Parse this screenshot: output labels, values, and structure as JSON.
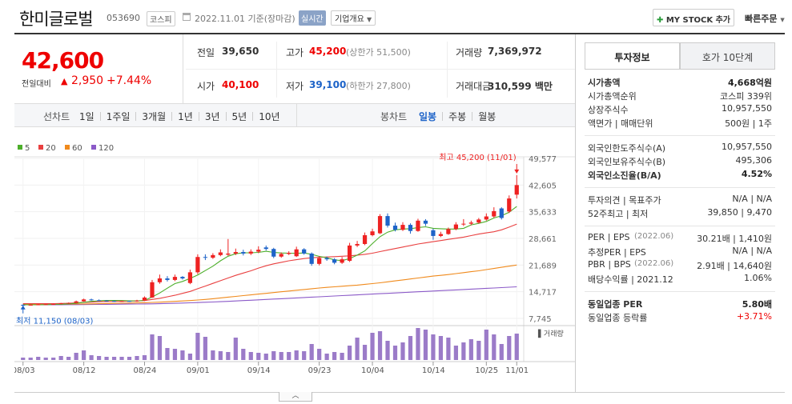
{
  "header": {
    "name": "한미글로벌",
    "code": "053690",
    "market_badge": "코스피",
    "date_text": "2022.11.01 기준(장마감)",
    "realtime_badge": "실시간",
    "company_info_label": "기업개요",
    "mystock_label": "MY STOCK 추가",
    "quick_order_label": "빠른주문"
  },
  "price": {
    "current": "42,600",
    "change_label": "전일대비",
    "change": "2,950",
    "change_pct": "+7.44%"
  },
  "summary": {
    "prev_label": "전일",
    "prev": "39,650",
    "high_label": "고가",
    "high": "45,200",
    "upper_label": "(상한가 51,500)",
    "volume_label": "거래량",
    "volume": "7,369,972",
    "open_label": "시가",
    "open": "40,100",
    "low_label": "저가",
    "low": "39,100",
    "lower_label": "(하한가 27,800)",
    "amount_label": "거래대금",
    "amount": "310,599 백만"
  },
  "period_tabs": {
    "line_label": "선차트",
    "items": [
      "1일",
      "1주일",
      "3개월",
      "1년",
      "3년",
      "5년",
      "10년"
    ],
    "candle_label": "봉차트",
    "candle_items": [
      "일봉",
      "주봉",
      "월봉"
    ]
  },
  "chart_data": {
    "type": "candlestick",
    "legend": [
      {
        "label": "5",
        "color": "#4caf2a"
      },
      {
        "label": "20",
        "color": "#e94040"
      },
      {
        "label": "60",
        "color": "#f08a1c"
      },
      {
        "label": "120",
        "color": "#8b5ac8"
      }
    ],
    "y_ticks": [
      "49,577",
      "42,605",
      "35,633",
      "28,661",
      "21,689",
      "14,717",
      "7,745"
    ],
    "x_ticks": [
      "08/03",
      "08/12",
      "08/24",
      "09/01",
      "09/14",
      "09/23",
      "10/04",
      "10/14",
      "10/25",
      "11/01"
    ],
    "max_annotation": "최고 45,200 (11/01)",
    "min_annotation": "최저 11,150 (08/03)",
    "volume_label": "거래량",
    "ylim": [
      7745,
      49577
    ],
    "candles": [
      {
        "o": 11300,
        "c": 11200,
        "h": 11400,
        "l": 11150
      },
      {
        "o": 11200,
        "c": 11300,
        "h": 11400,
        "l": 11150
      },
      {
        "o": 11300,
        "c": 11400,
        "h": 11500,
        "l": 11250
      },
      {
        "o": 11400,
        "c": 11450,
        "h": 11550,
        "l": 11350
      },
      {
        "o": 11450,
        "c": 11500,
        "h": 11600,
        "l": 11400
      },
      {
        "o": 11500,
        "c": 11700,
        "h": 11800,
        "l": 11450
      },
      {
        "o": 11700,
        "c": 11800,
        "h": 11900,
        "l": 11650
      },
      {
        "o": 11800,
        "c": 12200,
        "h": 12400,
        "l": 11700
      },
      {
        "o": 12200,
        "c": 12700,
        "h": 12900,
        "l": 12100
      },
      {
        "o": 12700,
        "c": 12500,
        "h": 12900,
        "l": 12400
      },
      {
        "o": 12500,
        "c": 12400,
        "h": 12700,
        "l": 12300
      },
      {
        "o": 12400,
        "c": 12300,
        "h": 12500,
        "l": 12200
      },
      {
        "o": 12300,
        "c": 12200,
        "h": 12400,
        "l": 12100
      },
      {
        "o": 12200,
        "c": 12300,
        "h": 12400,
        "l": 12100
      },
      {
        "o": 12300,
        "c": 12200,
        "h": 12400,
        "l": 12100
      },
      {
        "o": 12200,
        "c": 12400,
        "h": 12600,
        "l": 12100
      },
      {
        "o": 12400,
        "c": 13200,
        "h": 13500,
        "l": 12300
      },
      {
        "o": 13200,
        "c": 17200,
        "h": 17800,
        "l": 13100
      },
      {
        "o": 17200,
        "c": 18200,
        "h": 19200,
        "l": 16800
      },
      {
        "o": 18200,
        "c": 17800,
        "h": 18800,
        "l": 17400
      },
      {
        "o": 17800,
        "c": 18600,
        "h": 19200,
        "l": 17500
      },
      {
        "o": 18600,
        "c": 18200,
        "h": 18800,
        "l": 17900
      },
      {
        "o": 17000,
        "c": 19800,
        "h": 20500,
        "l": 16700
      },
      {
        "o": 19800,
        "c": 23800,
        "h": 24500,
        "l": 19300
      },
      {
        "o": 23800,
        "c": 23600,
        "h": 24500,
        "l": 23000
      },
      {
        "o": 23600,
        "c": 24300,
        "h": 24800,
        "l": 23300
      },
      {
        "o": 24300,
        "c": 25000,
        "h": 25800,
        "l": 24000
      },
      {
        "o": 24400,
        "c": 24700,
        "h": 28500,
        "l": 24100
      },
      {
        "o": 24700,
        "c": 25100,
        "h": 26000,
        "l": 24300
      },
      {
        "o": 25100,
        "c": 24700,
        "h": 25700,
        "l": 24200
      },
      {
        "o": 24700,
        "c": 25200,
        "h": 25800,
        "l": 24300
      },
      {
        "o": 25200,
        "c": 25700,
        "h": 26600,
        "l": 24800
      },
      {
        "o": 26300,
        "c": 25900,
        "h": 26800,
        "l": 25500
      },
      {
        "o": 25900,
        "c": 23900,
        "h": 26200,
        "l": 23500
      },
      {
        "o": 23900,
        "c": 24600,
        "h": 25000,
        "l": 23600
      },
      {
        "o": 24600,
        "c": 24900,
        "h": 25300,
        "l": 24300
      },
      {
        "o": 24000,
        "c": 25800,
        "h": 26500,
        "l": 23800
      },
      {
        "o": 25800,
        "c": 24700,
        "h": 26100,
        "l": 24400
      },
      {
        "o": 24700,
        "c": 22000,
        "h": 25000,
        "l": 21500
      },
      {
        "o": 22000,
        "c": 23500,
        "h": 24000,
        "l": 21600
      },
      {
        "o": 23500,
        "c": 23200,
        "h": 23900,
        "l": 22800
      },
      {
        "o": 23200,
        "c": 22300,
        "h": 23500,
        "l": 21900
      },
      {
        "o": 22300,
        "c": 23200,
        "h": 23800,
        "l": 22000
      },
      {
        "o": 22800,
        "c": 26800,
        "h": 27500,
        "l": 22500
      },
      {
        "o": 26800,
        "c": 27200,
        "h": 28000,
        "l": 26400
      },
      {
        "o": 27200,
        "c": 29500,
        "h": 30200,
        "l": 26900
      },
      {
        "o": 29500,
        "c": 30500,
        "h": 31200,
        "l": 29200
      },
      {
        "o": 30000,
        "c": 34500,
        "h": 35000,
        "l": 29800
      },
      {
        "o": 34500,
        "c": 32000,
        "h": 35200,
        "l": 31500
      },
      {
        "o": 32000,
        "c": 30900,
        "h": 32800,
        "l": 30500
      },
      {
        "o": 30900,
        "c": 32200,
        "h": 32900,
        "l": 30600
      },
      {
        "o": 32200,
        "c": 30600,
        "h": 32600,
        "l": 29900
      },
      {
        "o": 30600,
        "c": 33300,
        "h": 33800,
        "l": 30400
      },
      {
        "o": 33300,
        "c": 32500,
        "h": 33700,
        "l": 31900
      },
      {
        "o": 30800,
        "c": 29300,
        "h": 31200,
        "l": 28300
      },
      {
        "o": 29300,
        "c": 29800,
        "h": 30400,
        "l": 29000
      },
      {
        "o": 29800,
        "c": 31100,
        "h": 31500,
        "l": 29600
      },
      {
        "o": 31100,
        "c": 32300,
        "h": 32900,
        "l": 30800
      },
      {
        "o": 32300,
        "c": 32500,
        "h": 33700,
        "l": 31900
      },
      {
        "o": 32500,
        "c": 32800,
        "h": 33300,
        "l": 32100
      },
      {
        "o": 32800,
        "c": 33600,
        "h": 34000,
        "l": 32500
      },
      {
        "o": 33600,
        "c": 34400,
        "h": 35200,
        "l": 33300
      },
      {
        "o": 34400,
        "c": 35800,
        "h": 36800,
        "l": 34100
      },
      {
        "o": 36500,
        "c": 34000,
        "h": 36800,
        "l": 33600
      },
      {
        "o": 35700,
        "c": 39100,
        "h": 39900,
        "l": 35300
      },
      {
        "o": 40100,
        "c": 42600,
        "h": 45200,
        "l": 39100
      }
    ],
    "ma": {
      "ma5": {
        "color": "#4caf2a",
        "values": [
          11300,
          11300,
          11300,
          11350,
          11400,
          11450,
          11550,
          11700,
          11950,
          12200,
          12350,
          12450,
          12450,
          12400,
          12350,
          12300,
          12450,
          13350,
          14400,
          15650,
          16850,
          17400,
          18200,
          19100,
          20250,
          21400,
          22800,
          24000,
          24650,
          24900,
          24900,
          25000,
          25300,
          25000,
          24850,
          24800,
          24750,
          24850,
          24500,
          23950,
          23600,
          23050,
          22850,
          23400,
          24300,
          25400,
          27300,
          29100,
          30300,
          30900,
          31100,
          31200,
          31500,
          31700,
          31300,
          31200,
          31100,
          31100,
          31300,
          32200,
          32600,
          33100,
          34000,
          34600,
          35500,
          37000
        ]
      },
      "ma20": {
        "color": "#e94040",
        "values": [
          11600,
          11600,
          11600,
          11600,
          11620,
          11650,
          11700,
          11800,
          11900,
          12000,
          12100,
          12150,
          12200,
          12200,
          12250,
          12300,
          12400,
          12700,
          13000,
          13400,
          13800,
          14300,
          14800,
          15500,
          16200,
          16900,
          17600,
          18300,
          19000,
          19600,
          20200,
          20900,
          21500,
          22000,
          22400,
          22800,
          23100,
          23400,
          23600,
          23700,
          23800,
          23900,
          24000,
          24100,
          24300,
          24500,
          24800,
          25200,
          25600,
          26000,
          26400,
          26800,
          27200,
          27500,
          27800,
          28100,
          28400,
          28700,
          29000,
          29400,
          29800,
          30100,
          30400,
          30900,
          31600,
          32400
        ]
      },
      "ma60": {
        "color": "#f08a1c",
        "values": [
          11400,
          11400,
          11400,
          11420,
          11440,
          11460,
          11480,
          11500,
          11530,
          11560,
          11600,
          11640,
          11680,
          11720,
          11760,
          11800,
          11850,
          11920,
          12000,
          12100,
          12200,
          12300,
          12400,
          12550,
          12700,
          12900,
          13100,
          13300,
          13500,
          13700,
          13900,
          14100,
          14300,
          14500,
          14700,
          14900,
          15100,
          15300,
          15500,
          15700,
          15850,
          16000,
          16150,
          16300,
          16450,
          16650,
          16850,
          17050,
          17300,
          17550,
          17800,
          18050,
          18300,
          18550,
          18800,
          19000,
          19200,
          19450,
          19700,
          19950,
          20200,
          20500,
          20800,
          21100,
          21400,
          21700
        ]
      },
      "ma120": {
        "color": "#8b5ac8",
        "values": [
          11300,
          11300,
          11300,
          11310,
          11320,
          11330,
          11340,
          11350,
          11360,
          11380,
          11400,
          11420,
          11440,
          11460,
          11480,
          11500,
          11530,
          11560,
          11600,
          11650,
          11700,
          11760,
          11820,
          11890,
          11960,
          12040,
          12120,
          12210,
          12300,
          12400,
          12500,
          12600,
          12700,
          12800,
          12900,
          13000,
          13100,
          13200,
          13300,
          13400,
          13500,
          13600,
          13700,
          13800,
          13900,
          14000,
          14100,
          14200,
          14300,
          14400,
          14500,
          14600,
          14700,
          14800,
          14900,
          15000,
          15100,
          15200,
          15300,
          15400,
          15500,
          15600,
          15700,
          15800,
          15900,
          16000
        ]
      }
    },
    "volumes": [
      3,
      3,
      4,
      3,
      3,
      5,
      4,
      9,
      12,
      6,
      5,
      4,
      4,
      4,
      4,
      5,
      6,
      32,
      30,
      15,
      14,
      12,
      8,
      34,
      29,
      12,
      11,
      10,
      28,
      14,
      10,
      9,
      8,
      11,
      10,
      10,
      12,
      11,
      20,
      14,
      8,
      10,
      9,
      18,
      28,
      19,
      34,
      36,
      24,
      18,
      22,
      30,
      40,
      38,
      32,
      30,
      28,
      18,
      22,
      26,
      24,
      38,
      32,
      20,
      30,
      33
    ]
  },
  "side": {
    "tab_info": "투자정보",
    "tab_quote": "호가 10단계",
    "rows1": [
      {
        "label": "시가총액",
        "value": "4,668억원",
        "bold": true
      },
      {
        "label": "시가총액순위",
        "value": "코스피 339위"
      },
      {
        "label": "상장주식수",
        "value": "10,957,550"
      },
      {
        "label": "액면가 | 매매단위",
        "value": "500원 | 1주"
      }
    ],
    "rows2": [
      {
        "label": "외국인한도주식수(A)",
        "value": "10,957,550"
      },
      {
        "label": "외국인보유주식수(B)",
        "value": "495,306"
      },
      {
        "label": "외국인소진율(B/A)",
        "value": "4.52%",
        "bold": true
      }
    ],
    "rows3": [
      {
        "label": "투자의견 | 목표주가",
        "value": "N/A | N/A"
      },
      {
        "label": "52주최고 | 최저",
        "value": "39,850 | 9,470"
      }
    ],
    "rows4": [
      {
        "label": "PER | EPS",
        "note": "(2022.06)",
        "value": "30.21배 | 1,410원"
      },
      {
        "label": "추정PER | EPS",
        "value": "N/A | N/A"
      },
      {
        "label": "PBR | BPS",
        "note": "(2022.06)",
        "value": "2.91배 | 14,640원"
      },
      {
        "label": "배당수익률 | 2021.12",
        "value": "1.06%"
      }
    ],
    "rows5": [
      {
        "label": "동일업종 PER",
        "value": "5.80배",
        "bold": true
      },
      {
        "label": "동일업종 등락률",
        "value": "+3.71%",
        "red": true
      }
    ]
  }
}
